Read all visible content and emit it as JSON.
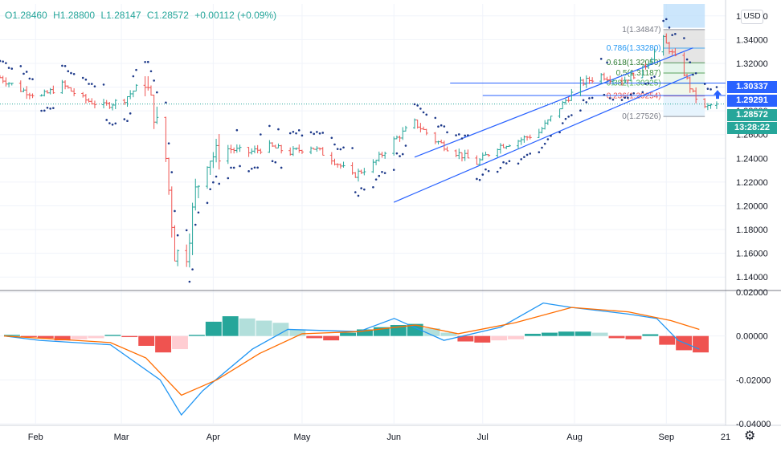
{
  "header": {
    "o": "O1.28460",
    "h": "H1.28800",
    "l": "L1.28147",
    "c": "C1.28572",
    "chg": "+0.00112 (+0.09%)"
  },
  "currency_button": "USD",
  "price_labels": {
    "level_a": "1.30337",
    "level_b": "1.29291",
    "last_price": "1.28572",
    "countdown": "13:28:22"
  },
  "colors": {
    "up": "#26a69a",
    "down": "#ef5350",
    "accent": "#2962ff",
    "psar": "#1e3a8a",
    "macd": "#2196f3",
    "signal": "#ff6d00"
  },
  "chart_data": [
    {
      "type": "line",
      "subtype": "ohlc-bars",
      "title": "",
      "x_ticks": [
        "Feb",
        "Mar",
        "Apr",
        "May",
        "Jun",
        "Jul",
        "Aug",
        "Sep",
        "21"
      ],
      "y_ticks": [
        "1.36000",
        "1.34000",
        "1.32000",
        "1.30000",
        "1.28000",
        "1.26000",
        "1.24000",
        "1.22000",
        "1.20000",
        "1.18000",
        "1.16000",
        "1.14000"
      ],
      "ylim": [
        1.13,
        1.37
      ],
      "close_series": [
        {
          "date": "2020-01-20",
          "close": 1.308
        },
        {
          "date": "2020-01-27",
          "close": 1.298
        },
        {
          "date": "2020-02-03",
          "close": 1.292
        },
        {
          "date": "2020-02-10",
          "close": 1.302
        },
        {
          "date": "2020-02-17",
          "close": 1.29
        },
        {
          "date": "2020-02-24",
          "close": 1.284
        },
        {
          "date": "2020-03-02",
          "close": 1.29
        },
        {
          "date": "2020-03-09",
          "close": 1.306
        },
        {
          "date": "2020-03-12",
          "close": 1.278
        },
        {
          "date": "2020-03-16",
          "close": 1.24
        },
        {
          "date": "2020-03-19",
          "close": 1.16
        },
        {
          "date": "2020-03-23",
          "close": 1.16
        },
        {
          "date": "2020-03-26",
          "close": 1.212
        },
        {
          "date": "2020-03-30",
          "close": 1.24
        },
        {
          "date": "2020-04-06",
          "close": 1.248
        },
        {
          "date": "2020-04-13",
          "close": 1.245
        },
        {
          "date": "2020-04-20",
          "close": 1.25
        },
        {
          "date": "2020-04-27",
          "close": 1.245
        },
        {
          "date": "2020-05-04",
          "close": 1.25
        },
        {
          "date": "2020-05-11",
          "close": 1.24
        },
        {
          "date": "2020-05-18",
          "close": 1.225
        },
        {
          "date": "2020-05-25",
          "close": 1.235
        },
        {
          "date": "2020-06-01",
          "close": 1.255
        },
        {
          "date": "2020-06-08",
          "close": 1.27
        },
        {
          "date": "2020-06-15",
          "close": 1.255
        },
        {
          "date": "2020-06-22",
          "close": 1.245
        },
        {
          "date": "2020-06-29",
          "close": 1.236
        },
        {
          "date": "2020-07-06",
          "close": 1.25
        },
        {
          "date": "2020-07-13",
          "close": 1.255
        },
        {
          "date": "2020-07-20",
          "close": 1.262
        },
        {
          "date": "2020-07-27",
          "close": 1.283
        },
        {
          "date": "2020-08-03",
          "close": 1.303
        },
        {
          "date": "2020-08-10",
          "close": 1.31
        },
        {
          "date": "2020-08-17",
          "close": 1.305
        },
        {
          "date": "2020-08-24",
          "close": 1.315
        },
        {
          "date": "2020-08-31",
          "close": 1.34
        },
        {
          "date": "2020-09-07",
          "close": 1.312
        },
        {
          "date": "2020-09-10",
          "close": 1.294
        },
        {
          "date": "2020-09-14",
          "close": 1.282
        },
        {
          "date": "2020-09-17",
          "close": 1.286
        }
      ],
      "fibonacci_retracement": [
        {
          "label": "1(1.34847)",
          "value": 1.34847
        },
        {
          "label": "0.786(1.33280)",
          "value": 1.3328
        },
        {
          "label": "0.618(1.32050)",
          "value": 1.3205
        },
        {
          "label": "0.5(1.31187)",
          "value": 1.31187
        },
        {
          "label": "0.382(1.30325)",
          "value": 1.30325
        },
        {
          "label": "0.236(1.29254)",
          "value": 1.29254
        },
        {
          "label": "0(1.27526)",
          "value": 1.27526
        }
      ],
      "horizontal_levels": [
        1.30337,
        1.29291
      ],
      "channel": {
        "upper": [
          {
            "date": "2020-06-08",
            "value": 1.241
          },
          {
            "date": "2020-09-10",
            "value": 1.333
          }
        ],
        "lower": [
          {
            "date": "2020-06-01",
            "value": 1.203
          },
          {
            "date": "2020-09-10",
            "value": 1.311
          }
        ]
      }
    },
    {
      "type": "line",
      "title": "",
      "y_ticks": [
        "0.02000",
        "0.00000",
        "-0.02000",
        "-0.04000"
      ],
      "ylim": [
        -0.04,
        0.02
      ],
      "series": [
        {
          "values": [
            [
              0.0,
              0.0
            ],
            [
              0.05,
              -0.002
            ],
            [
              0.15,
              -0.004
            ],
            [
              0.22,
              -0.02
            ],
            [
              0.25,
              -0.036
            ],
            [
              0.28,
              -0.025
            ],
            [
              0.35,
              -0.006
            ],
            [
              0.4,
              0.003
            ],
            [
              0.5,
              0.002
            ],
            [
              0.55,
              0.008
            ],
            [
              0.62,
              -0.002
            ],
            [
              0.7,
              0.004
            ],
            [
              0.76,
              0.015
            ],
            [
              0.8,
              0.013
            ],
            [
              0.88,
              0.01
            ],
            [
              0.92,
              0.008
            ],
            [
              0.95,
              -0.002
            ],
            [
              0.98,
              -0.006
            ]
          ]
        },
        {
          "values": [
            [
              0.0,
              0.0
            ],
            [
              0.05,
              -0.001
            ],
            [
              0.15,
              -0.003
            ],
            [
              0.2,
              -0.01
            ],
            [
              0.25,
              -0.027
            ],
            [
              0.3,
              -0.02
            ],
            [
              0.36,
              -0.008
            ],
            [
              0.42,
              0.001
            ],
            [
              0.5,
              0.002
            ],
            [
              0.58,
              0.005
            ],
            [
              0.64,
              0.001
            ],
            [
              0.72,
              0.006
            ],
            [
              0.8,
              0.013
            ],
            [
              0.88,
              0.011
            ],
            [
              0.94,
              0.007
            ],
            [
              0.98,
              0.003
            ]
          ]
        }
      ],
      "histogram": [
        0.0005,
        -0.0005,
        -0.001,
        -0.002,
        -0.0015,
        -0.001,
        0.0005,
        -0.0005,
        -0.0045,
        -0.0075,
        -0.006,
        0.0005,
        0.0065,
        0.009,
        0.008,
        0.007,
        0.006,
        0.003,
        -0.001,
        -0.002,
        0.0015,
        0.003,
        0.004,
        0.005,
        0.0055,
        0.0035,
        0.0015,
        -0.0025,
        -0.003,
        -0.002,
        -0.0015,
        0.001,
        0.0015,
        0.002,
        0.002,
        0.0015,
        -0.001,
        -0.0015,
        0.0008,
        -0.004,
        -0.0065,
        -0.0075
      ]
    }
  ]
}
